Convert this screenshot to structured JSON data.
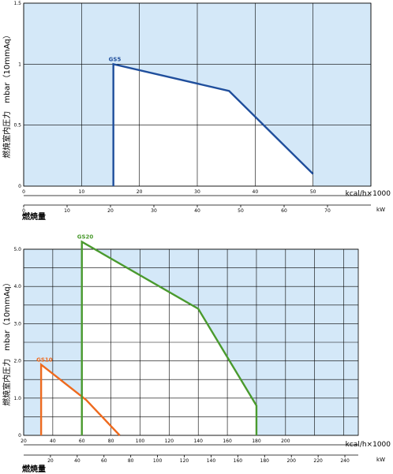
{
  "colors": {
    "background": "#d4e8f8",
    "grid": "#000000",
    "inside": "#ffffff",
    "GS5": "#1f4e9c",
    "GS10": "#ee6a1e",
    "GS20": "#4a9a2e"
  },
  "chart_data": [
    {
      "type": "line",
      "ylabel": "燃焼室内圧力　mbar（10mmAq）",
      "xlabel_unit": "kcal/h×1000",
      "xlabel2_unit": "kW",
      "xtitle": "燃焼量",
      "grid": true,
      "xlim": [
        0,
        60
      ],
      "ylim": [
        0,
        1.5
      ],
      "x_ticks": [
        0,
        10,
        20,
        30,
        40,
        50
      ],
      "x_tick_labels": [
        "0",
        "10",
        "20",
        "30",
        "40",
        "50"
      ],
      "y_ticks": [
        0,
        0.5,
        1,
        1.5
      ],
      "y_tick_labels": [
        "0",
        "0.5",
        "1",
        "1.5"
      ],
      "x2_ticks": [
        0,
        10,
        20,
        30,
        40,
        50,
        60,
        70
      ],
      "x2_tick_labels": [
        "0",
        "10",
        "20",
        "30",
        "40",
        "50",
        "60",
        "70"
      ],
      "series": [
        {
          "name": "GS5",
          "color": "#1f4e9c",
          "x": [
            15.5,
            15.5,
            35.5,
            50
          ],
          "y": [
            0,
            1.0,
            0.78,
            0.1
          ]
        }
      ]
    },
    {
      "type": "line",
      "ylabel": "燃焼室内圧力　mbar（10mmAq）",
      "xlabel_unit": "kcal/h×1000",
      "xlabel2_unit": "kW",
      "xtitle": "燃焼量",
      "grid": true,
      "xlim": [
        20,
        250
      ],
      "ylim": [
        0,
        5.0
      ],
      "x_ticks": [
        20,
        40,
        60,
        80,
        100,
        120,
        140,
        160,
        180,
        200
      ],
      "x_tick_labels": [
        "20",
        "40",
        "60",
        "80",
        "100",
        "120",
        "140",
        "160",
        "180",
        "200"
      ],
      "y_ticks": [
        0,
        1.0,
        2.0,
        3.0,
        4.0,
        5.0
      ],
      "y_tick_labels": [
        "0",
        "1.0",
        "2.0",
        "3.0",
        "4.0",
        "5.0"
      ],
      "x2_ticks": [
        20,
        40,
        60,
        80,
        100,
        120,
        140,
        160,
        180,
        200,
        220,
        240
      ],
      "x2_tick_labels": [
        "20",
        "40",
        "60",
        "80",
        "100",
        "120",
        "140",
        "160",
        "180",
        "200",
        "220",
        "240"
      ],
      "series": [
        {
          "name": "GS10",
          "color": "#ee6a1e",
          "x": [
            32,
            32,
            63,
            86
          ],
          "y": [
            0,
            1.9,
            0.95,
            0
          ]
        },
        {
          "name": "GS20",
          "color": "#4a9a2e",
          "x": [
            60,
            60,
            140,
            180,
            180
          ],
          "y": [
            0,
            5.2,
            3.4,
            0.8,
            0
          ]
        }
      ]
    }
  ]
}
